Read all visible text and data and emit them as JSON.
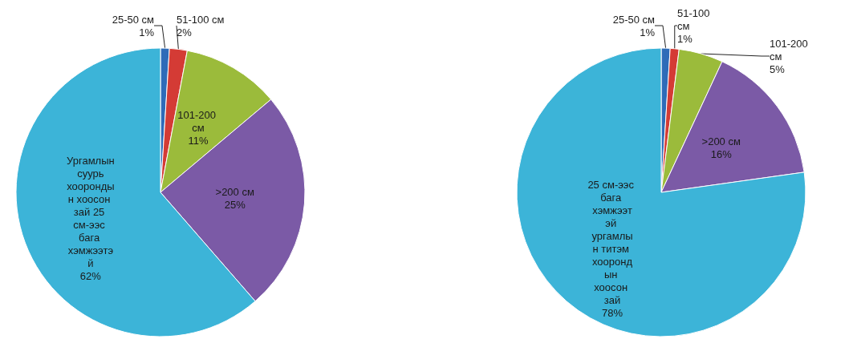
{
  "chart_data": [
    {
      "type": "pie",
      "categories": [
        "25-50 см",
        "51-100 см",
        "101-200 см",
        ">200 см",
        "Ургамлын суурь хоорондын хоосон зай 25 см-ээс бага хэмжээтэй"
      ],
      "values": [
        1,
        2,
        11,
        25,
        62
      ],
      "value_labels": [
        "1%",
        "2%",
        "11%",
        "25%",
        "62%"
      ],
      "colors": [
        "#2e6bb8",
        "#d43b35",
        "#9bbb3b",
        "#7b5aa6",
        "#3cb4d8"
      ]
    },
    {
      "type": "pie",
      "categories": [
        "25-50 см",
        "51-100 см",
        "101-200 см",
        ">200 см",
        "25 см-ээс бага хэмжээтэй ургамлын титэм хоорондын хоосон зай"
      ],
      "values": [
        1,
        1,
        5,
        16,
        78
      ],
      "value_labels": [
        "1%",
        "1%",
        "5%",
        "16%",
        "78%"
      ],
      "colors": [
        "#2e6bb8",
        "#d43b35",
        "#9bbb3b",
        "#7b5aa6",
        "#3cb4d8"
      ]
    }
  ]
}
